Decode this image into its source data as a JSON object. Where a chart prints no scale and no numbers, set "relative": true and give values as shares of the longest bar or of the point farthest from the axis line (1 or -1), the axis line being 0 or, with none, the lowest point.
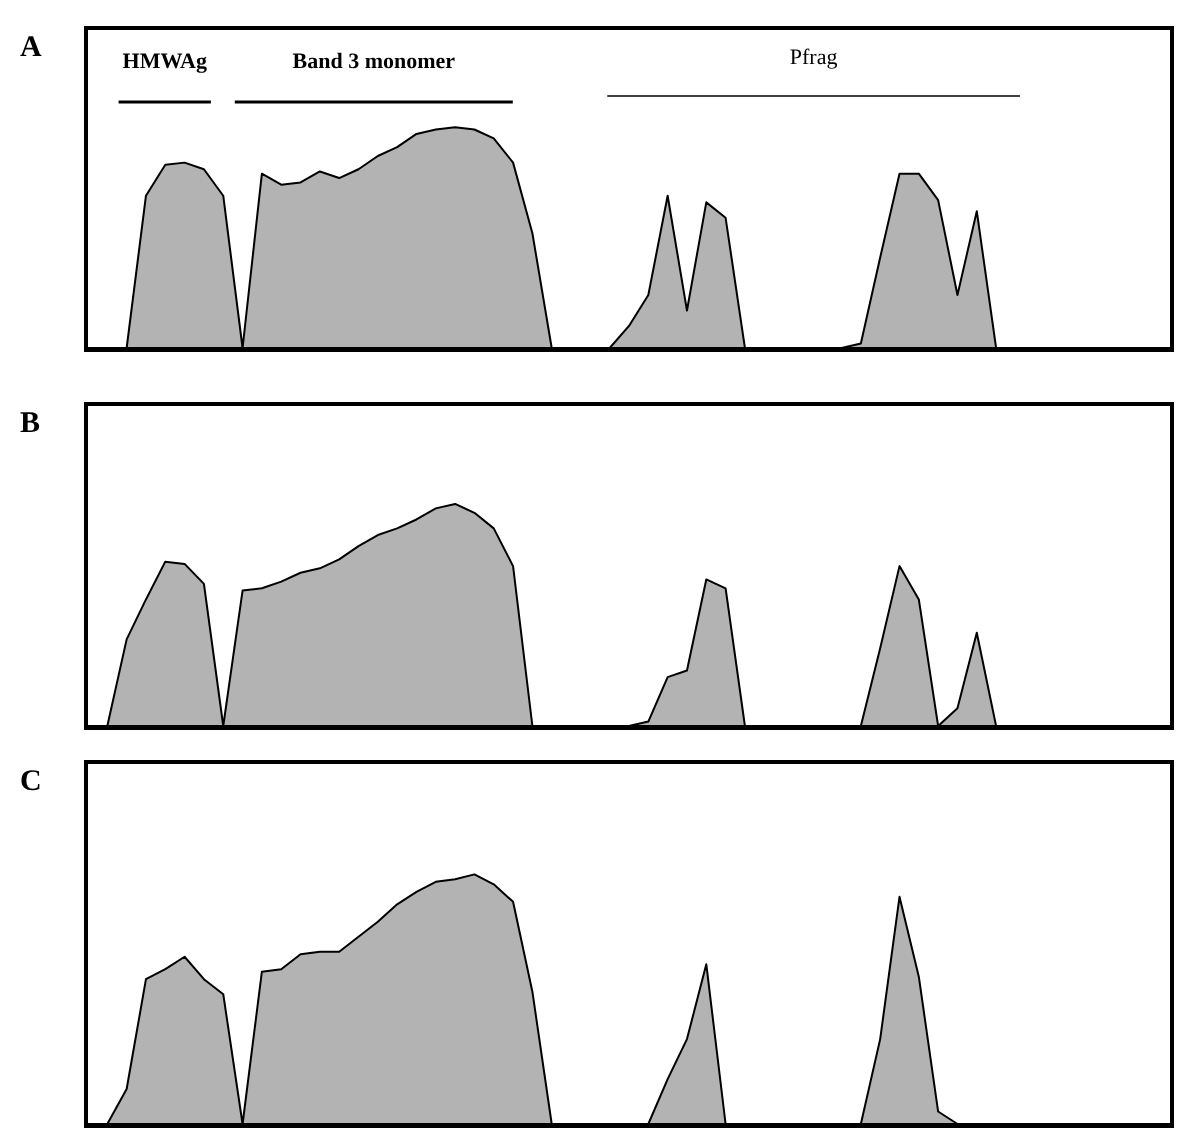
{
  "chart_data": [
    {
      "type": "area",
      "title": "A",
      "relative": true,
      "color": "#b3b3b3",
      "categories": [
        null,
        null,
        null,
        null,
        null,
        null,
        null,
        null,
        null,
        null,
        null,
        null,
        null,
        null,
        null,
        null,
        null,
        null,
        null,
        null,
        null,
        null,
        null,
        null,
        null,
        null,
        null,
        null,
        null,
        null,
        null,
        null,
        null,
        null,
        null,
        null,
        null,
        null,
        null,
        null,
        null,
        null,
        null,
        null,
        null,
        null,
        null,
        null,
        null,
        null,
        null,
        null,
        null,
        null,
        null,
        null,
        null
      ],
      "values": [
        0,
        0,
        0,
        0.69,
        0.83,
        0.84,
        0.81,
        0.69,
        0,
        0.79,
        0.74,
        0.75,
        0.8,
        0.77,
        0.81,
        0.87,
        0.91,
        0.97,
        0.99,
        1,
        0.99,
        0.95,
        0.84,
        0.52,
        0,
        0,
        0,
        0,
        0.1,
        0.24,
        0.69,
        0.17,
        0.66,
        0.59,
        0,
        0,
        0,
        0,
        0,
        0,
        0.02,
        0.41,
        0.79,
        0.79,
        0.67,
        0.24,
        0.62,
        0,
        0,
        0,
        0,
        0,
        0,
        0,
        0,
        0,
        0
      ],
      "annotations": [
        "HMWAg",
        "Band 3 monomer",
        "Pfrag"
      ]
    },
    {
      "type": "area",
      "title": "B",
      "relative": true,
      "color": "#b3b3b3",
      "categories": [
        null,
        null,
        null,
        null,
        null,
        null,
        null,
        null,
        null,
        null,
        null,
        null,
        null,
        null,
        null,
        null,
        null,
        null,
        null,
        null,
        null,
        null,
        null,
        null,
        null,
        null,
        null,
        null,
        null,
        null,
        null,
        null,
        null,
        null,
        null,
        null,
        null,
        null,
        null,
        null,
        null,
        null,
        null,
        null,
        null,
        null,
        null,
        null,
        null,
        null,
        null,
        null,
        null,
        null,
        null,
        null,
        null
      ],
      "values": [
        0,
        0,
        0.39,
        0.57,
        0.74,
        0.73,
        0.64,
        0,
        0.61,
        0.62,
        0.65,
        0.69,
        0.71,
        0.75,
        0.81,
        0.86,
        0.89,
        0.93,
        0.98,
        1,
        0.96,
        0.89,
        0.72,
        0,
        0,
        0,
        0,
        0,
        0,
        0.02,
        0.22,
        0.25,
        0.66,
        0.62,
        0,
        0,
        0,
        0,
        0,
        0,
        0,
        0.35,
        0.72,
        0.57,
        0,
        0.08,
        0.42,
        0,
        0,
        0,
        0,
        0,
        0,
        0,
        0,
        0,
        0
      ]
    },
    {
      "type": "area",
      "title": "C",
      "relative": true,
      "color": "#b3b3b3",
      "categories": [
        null,
        null,
        null,
        null,
        null,
        null,
        null,
        null,
        null,
        null,
        null,
        null,
        null,
        null,
        null,
        null,
        null,
        null,
        null,
        null,
        null,
        null,
        null,
        null,
        null,
        null,
        null,
        null,
        null,
        null,
        null,
        null,
        null,
        null,
        null,
        null,
        null,
        null,
        null,
        null,
        null,
        null,
        null,
        null,
        null,
        null,
        null,
        null,
        null,
        null,
        null,
        null,
        null,
        null,
        null,
        null,
        null
      ],
      "values": [
        0,
        0,
        0.14,
        0.58,
        0.62,
        0.67,
        0.58,
        0.52,
        0,
        0.61,
        0.62,
        0.68,
        0.69,
        0.69,
        0.75,
        0.81,
        0.88,
        0.93,
        0.97,
        0.98,
        1,
        0.96,
        0.89,
        0.53,
        0,
        0,
        0,
        0,
        0,
        0,
        0.18,
        0.34,
        0.64,
        0,
        0,
        0,
        0,
        0,
        0,
        0,
        0,
        0.34,
        0.91,
        0.59,
        0.05,
        0,
        0,
        0,
        0,
        0,
        0,
        0,
        0,
        0,
        0,
        0,
        0
      ]
    }
  ]
}
